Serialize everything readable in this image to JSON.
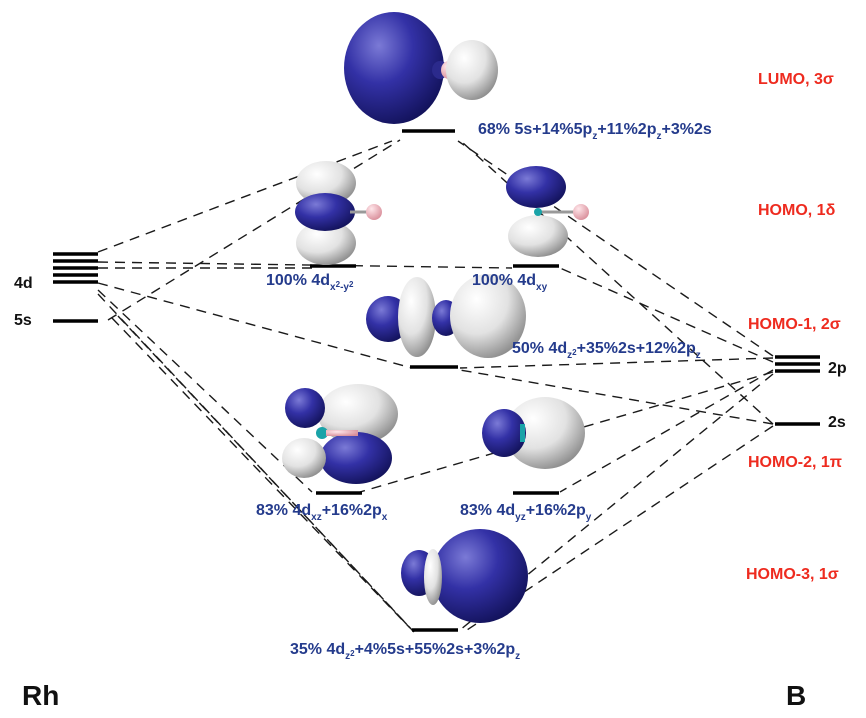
{
  "atoms": {
    "left": "Rh",
    "right": "B"
  },
  "rh_levels": {
    "d": "4d",
    "s": "5s"
  },
  "b_levels": {
    "p": "2p",
    "s": "2s"
  },
  "mo_names": {
    "lumo": "LUMO, 3σ",
    "homo": "HOMO, 1δ",
    "homo1": "HOMO-1, 2σ",
    "homo2": "HOMO-2, 1π",
    "homo3": "HOMO-3, 1σ"
  },
  "compositions": {
    "lumo": [
      "68% 5s+14%5p",
      "z",
      "+11%2p",
      "z",
      "+3%2s"
    ],
    "homo_a": [
      "100% 4d",
      "x",
      "2",
      "-y",
      "2"
    ],
    "homo_b": [
      "100% 4d",
      "xy"
    ],
    "homo1": [
      "50% 4d",
      "z",
      "2",
      "+35%2s+12%2p",
      "z"
    ],
    "homo2_a": [
      "83% 4d",
      "xz",
      "+16%2p",
      "x"
    ],
    "homo2_b": [
      "83% 4d",
      "yz",
      "+16%2p",
      "y"
    ],
    "homo3": [
      "35% 4d",
      "z",
      "2",
      "+4%5s+55%2s+3%2p",
      "z"
    ]
  },
  "colors": {
    "orbital_blue": "#2b2a8c",
    "orbital_white": "#e6e6e6",
    "boron_pink": "#f0b8c0",
    "rh_teal": "#1aa3a8",
    "mo_label_red": "#ee2b1f",
    "composition_blue": "#243b8c"
  }
}
